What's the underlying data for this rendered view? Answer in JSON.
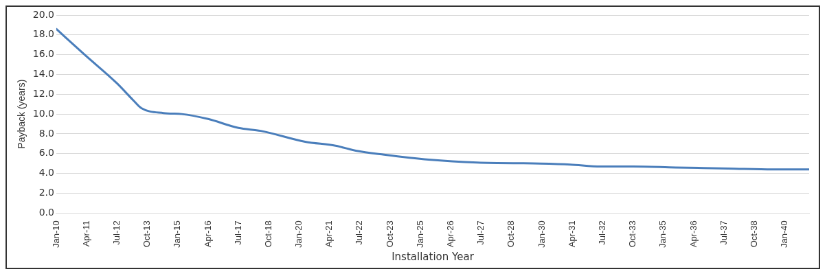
{
  "chart_data": {
    "type": "line",
    "xlabel": "Installation Year",
    "ylabel": "Payback (years)",
    "x": [
      "2010-01",
      "2011-03",
      "2012-07",
      "2013-03",
      "2013-07",
      "2014-06",
      "2015-03",
      "2016-04",
      "2017-07",
      "2018-06",
      "2020-04",
      "2021-07",
      "2022-05",
      "2023-07",
      "2025-05",
      "2027-05",
      "2029-12",
      "2031-03",
      "2032-06",
      "2033-10",
      "2035-07",
      "2037-09",
      "2039-07",
      "2041-01"
    ],
    "series": [
      {
        "color": "#4a7ebb",
        "values": [
          18.6,
          16.0,
          13.1,
          11.4,
          10.6,
          10.1,
          10.0,
          9.5,
          8.6,
          8.3,
          7.2,
          6.8,
          6.3,
          5.9,
          5.4,
          5.1,
          5.0,
          4.9,
          4.7,
          4.7,
          4.6,
          4.5,
          4.4,
          4.4
        ]
      }
    ],
    "xlim": [
      "2010-01",
      "2041-01"
    ],
    "xticks": [
      {
        "value": "2010-01",
        "label": "Jan-10"
      },
      {
        "value": "2011-04",
        "label": "Apr-11"
      },
      {
        "value": "2012-07",
        "label": "Jul-12"
      },
      {
        "value": "2013-10",
        "label": "Oct-13"
      },
      {
        "value": "2015-01",
        "label": "Jan-15"
      },
      {
        "value": "2016-04",
        "label": "Apr-16"
      },
      {
        "value": "2017-07",
        "label": "Jul-17"
      },
      {
        "value": "2018-10",
        "label": "Oct-18"
      },
      {
        "value": "2020-01",
        "label": "Jan-20"
      },
      {
        "value": "2021-04",
        "label": "Apr-21"
      },
      {
        "value": "2022-07",
        "label": "Jul-22"
      },
      {
        "value": "2023-10",
        "label": "Oct-23"
      },
      {
        "value": "2025-01",
        "label": "Jan-25"
      },
      {
        "value": "2026-04",
        "label": "Apr-26"
      },
      {
        "value": "2027-07",
        "label": "Jul-27"
      },
      {
        "value": "2028-10",
        "label": "Oct-28"
      },
      {
        "value": "2030-01",
        "label": "Jan-30"
      },
      {
        "value": "2031-04",
        "label": "Apr-31"
      },
      {
        "value": "2032-07",
        "label": "Jul-32"
      },
      {
        "value": "2033-10",
        "label": "Oct-33"
      },
      {
        "value": "2035-01",
        "label": "Jan-35"
      },
      {
        "value": "2036-04",
        "label": "Apr-36"
      },
      {
        "value": "2037-07",
        "label": "Jul-37"
      },
      {
        "value": "2038-10",
        "label": "Oct-38"
      },
      {
        "value": "2040-01",
        "label": "Jan-40"
      }
    ],
    "ylim": [
      0,
      20
    ],
    "yticks": [
      {
        "value": 0,
        "label": "0.0"
      },
      {
        "value": 2,
        "label": "2.0"
      },
      {
        "value": 4,
        "label": "4.0"
      },
      {
        "value": 6,
        "label": "6.0"
      },
      {
        "value": 8,
        "label": "8.0"
      },
      {
        "value": 10,
        "label": "10.0"
      },
      {
        "value": 12,
        "label": "12.0"
      },
      {
        "value": 14,
        "label": "14.0"
      },
      {
        "value": 16,
        "label": "16.0"
      },
      {
        "value": 18,
        "label": "18.0"
      },
      {
        "value": 20,
        "label": "20.0"
      }
    ],
    "grid": "y",
    "legend": false,
    "marker": "none",
    "line_style": "solid"
  }
}
